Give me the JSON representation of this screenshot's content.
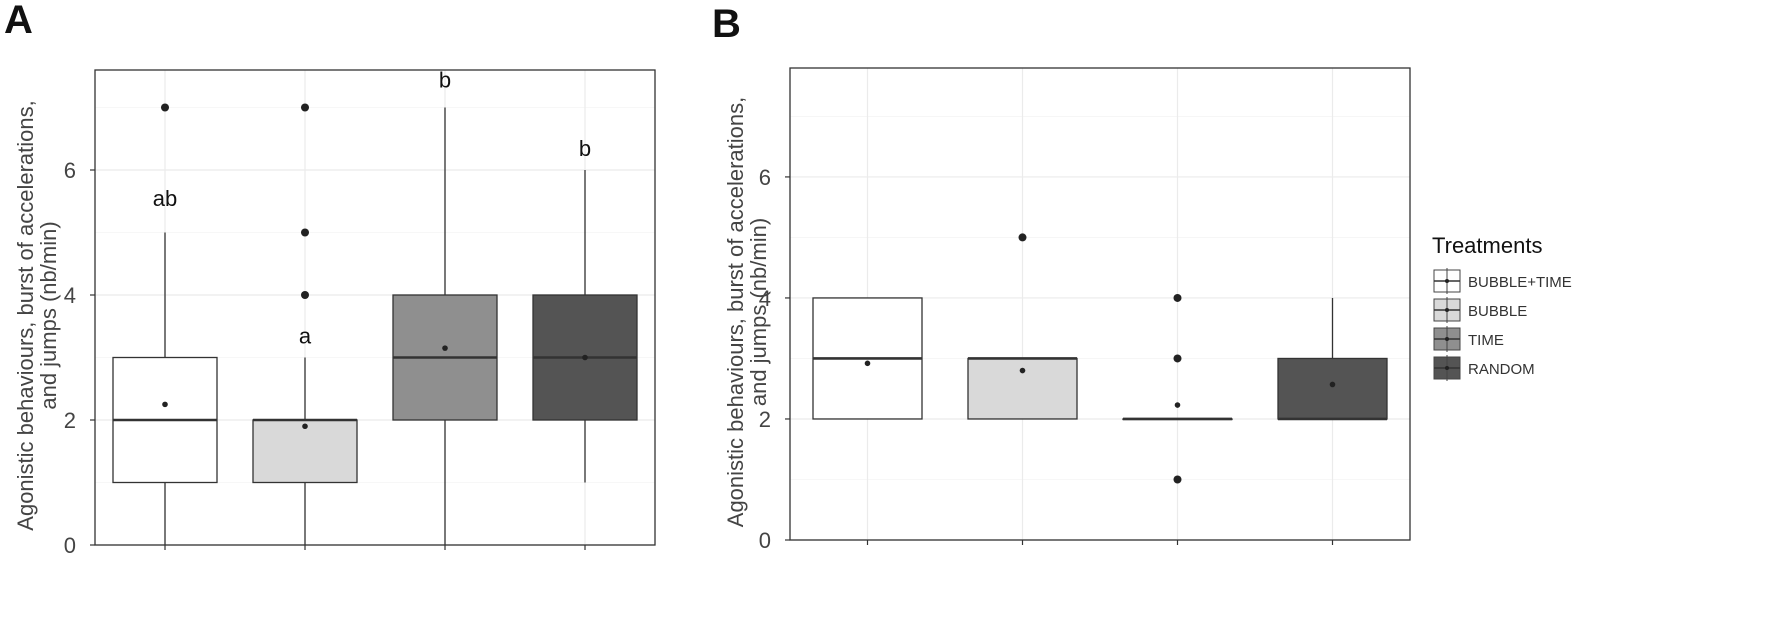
{
  "chart_data": [
    {
      "panel": "A",
      "type": "box",
      "ylabel_lines": [
        "Agonistic behaviours, burst of accelerations,",
        "and jumps (nb/min)"
      ],
      "ylim": [
        0,
        7.6
      ],
      "yticks": [
        0,
        2,
        4,
        6
      ],
      "grid": true,
      "boxes": [
        {
          "fill": "#ffffff",
          "q1": 1,
          "median": 2,
          "q3": 3,
          "whisker_low": 0,
          "whisker_high": 5,
          "mean": 2.25,
          "outliers": [
            7
          ],
          "letter": "ab",
          "letter_y": 5.55
        },
        {
          "fill": "#d9d9d9",
          "q1": 1,
          "median": 2,
          "q3": 2,
          "whisker_low": 0,
          "whisker_high": 3,
          "mean": 1.9,
          "outliers": [
            4,
            5,
            7
          ],
          "letter": "a",
          "letter_y": 3.35
        },
        {
          "fill": "#8f8f8f",
          "q1": 2,
          "median": 3,
          "q3": 4,
          "whisker_low": 0,
          "whisker_high": 7,
          "mean": 3.15,
          "outliers": [],
          "letter": "b",
          "letter_y": 7.45
        },
        {
          "fill": "#545454",
          "q1": 2,
          "median": 3,
          "q3": 4,
          "whisker_low": 1,
          "whisker_high": 6,
          "mean": 3.0,
          "outliers": [],
          "letter": "b",
          "letter_y": 6.35
        }
      ]
    },
    {
      "panel": "B",
      "type": "box",
      "ylabel_lines": [
        "Agonistic behaviours, burst of accelerations,",
        "and jumps (nb/min)"
      ],
      "ylim": [
        0,
        7.8
      ],
      "yticks": [
        0,
        2,
        4,
        6
      ],
      "grid": true,
      "boxes": [
        {
          "fill": "#ffffff",
          "q1": 2,
          "median": 3,
          "q3": 4,
          "whisker_low": 2,
          "whisker_high": 4,
          "mean": 2.92,
          "outliers": [],
          "letter": ""
        },
        {
          "fill": "#d9d9d9",
          "q1": 2,
          "median": 3,
          "q3": 3,
          "whisker_low": 2,
          "whisker_high": 3,
          "mean": 2.8,
          "outliers": [
            5
          ],
          "letter": ""
        },
        {
          "fill": "#8f8f8f",
          "q1": 2,
          "median": 2,
          "q3": 2,
          "whisker_low": 2,
          "whisker_high": 2,
          "mean": 2.23,
          "outliers": [
            1,
            3,
            4
          ],
          "letter": ""
        },
        {
          "fill": "#545454",
          "q1": 2,
          "median": 2,
          "q3": 3,
          "whisker_low": 2,
          "whisker_high": 4,
          "mean": 2.57,
          "outliers": [],
          "letter": ""
        }
      ]
    }
  ],
  "legend": {
    "title": "Treatments",
    "placement": "right",
    "items": [
      {
        "label": "BUBBLE+TIME",
        "fill": "#ffffff"
      },
      {
        "label": "BUBBLE",
        "fill": "#d9d9d9"
      },
      {
        "label": "TIME",
        "fill": "#8f8f8f"
      },
      {
        "label": "RANDOM",
        "fill": "#545454"
      }
    ]
  }
}
